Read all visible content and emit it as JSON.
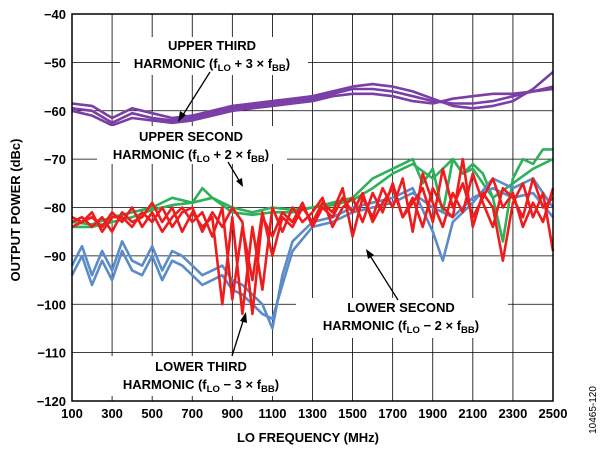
{
  "chart_data": {
    "type": "line",
    "xlabel": "LO FREQUENCY (MHz)",
    "ylabel": "OUTPUT POWER (dBc)",
    "xlim": [
      100,
      2500
    ],
    "ylim": [
      -120,
      -40
    ],
    "x_ticks": [
      "100",
      "300",
      "500",
      "700",
      "900",
      "1100",
      "1300",
      "1500",
      "1700",
      "1900",
      "2100",
      "2300",
      "2500"
    ],
    "y_ticks": [
      "−40",
      "−50",
      "−60",
      "−70",
      "−80",
      "−90",
      "−100",
      "−110",
      "−120"
    ],
    "grid": true,
    "colors": {
      "upper_third": "#7a3fa6",
      "upper_second": "#2fb05a",
      "lower_third": "#5b8cc8",
      "lower_second": "#ee1c1c"
    },
    "annotations": {
      "upper_third": {
        "line1": "UPPER THIRD",
        "line2_pre": "HARMONIC (f",
        "sub1": "LO",
        "mid": " + 3 × f",
        "sub2": "BB",
        "post": ")"
      },
      "upper_second": {
        "line1": "UPPER SECOND",
        "line2_pre": "HARMONIC (f",
        "sub1": "LO",
        "mid": " + 2 × f",
        "sub2": "BB",
        "post": ")"
      },
      "lower_second": {
        "line1": "LOWER SECOND",
        "line2_pre": "HARMONIC (f",
        "sub1": "LO",
        "mid": " − 2 × f",
        "sub2": "BB",
        "post": ")"
      },
      "lower_third": {
        "line1": "LOWER THIRD",
        "line2_pre": "HARMONIC (f",
        "sub1": "LO",
        "mid": " − 3 × f",
        "sub2": "BB",
        "post": ")"
      }
    },
    "figure_id": "10465-120",
    "series": [
      {
        "key": "upper_third",
        "traces": [
          {
            "x": [
              100,
              200,
              300,
              400,
              500,
              600,
              700,
              800,
              900,
              1000,
              1100,
              1200,
              1300,
              1400,
              1500,
              1600,
              1700,
              1800,
              1900,
              2000,
              2100,
              2200,
              2300,
              2400,
              2500
            ],
            "y": [
              -58.5,
              -59,
              -61.5,
              -59.5,
              -60.5,
              -61.5,
              -61,
              -60,
              -59,
              -58.5,
              -58,
              -57.5,
              -57,
              -56,
              -55,
              -54.5,
              -55,
              -56,
              -57.5,
              -59,
              -59.5,
              -59,
              -58,
              -55.5,
              -52
            ]
          },
          {
            "x": [
              100,
              200,
              300,
              400,
              500,
              600,
              700,
              800,
              900,
              1000,
              1100,
              1200,
              1300,
              1400,
              1500,
              1600,
              1700,
              1800,
              1900,
              2000,
              2100,
              2200,
              2300,
              2400,
              2500
            ],
            "y": [
              -59.5,
              -60,
              -62.5,
              -60.5,
              -61.5,
              -62,
              -61.5,
              -60.5,
              -59.5,
              -59,
              -58.5,
              -58,
              -57.5,
              -56.5,
              -55.5,
              -55.5,
              -56,
              -57,
              -58,
              -58.5,
              -58.5,
              -58,
              -57,
              -56,
              -55
            ]
          },
          {
            "x": [
              100,
              200,
              300,
              400,
              500,
              600,
              700,
              800,
              900,
              1000,
              1100,
              1200,
              1300,
              1400,
              1500,
              1600,
              1700,
              1800,
              1900,
              2000,
              2100,
              2200,
              2300,
              2400,
              2500
            ],
            "y": [
              -60,
              -61,
              -63,
              -61.5,
              -62,
              -62.5,
              -62,
              -61,
              -60,
              -59.5,
              -59,
              -58.5,
              -58,
              -57,
              -56.5,
              -56.5,
              -57,
              -58,
              -58.5,
              -57.5,
              -57,
              -56.5,
              -56.5,
              -56,
              -55.5
            ]
          }
        ]
      },
      {
        "key": "upper_second",
        "traces": [
          {
            "x": [
              100,
              200,
              300,
              400,
              500,
              600,
              700,
              750,
              800,
              900,
              1000,
              1100,
              1200,
              1300,
              1400,
              1500,
              1600,
              1700,
              1800,
              1850,
              1900,
              1950,
              2000,
              2050,
              2100,
              2150,
              2200,
              2250,
              2300,
              2350,
              2400,
              2450,
              2500
            ],
            "y": [
              -83,
              -83.5,
              -82,
              -81,
              -80,
              -78,
              -79,
              -76,
              -78,
              -80,
              -81,
              -80,
              -80.5,
              -80,
              -79,
              -78,
              -74,
              -72,
              -70,
              -75,
              -72,
              -81,
              -70,
              -73,
              -71,
              -73,
              -78,
              -87,
              -74,
              -70,
              -71,
              -68,
              -68
            ]
          },
          {
            "x": [
              100,
              200,
              300,
              400,
              500,
              600,
              700,
              800,
              900,
              1000,
              1100,
              1200,
              1300,
              1400,
              1500,
              1600,
              1700,
              1800,
              1900,
              2000,
              2050,
              2100,
              2200,
              2300,
              2400,
              2500
            ],
            "y": [
              -84,
              -84,
              -83,
              -82,
              -80.5,
              -79.5,
              -79,
              -78,
              -81,
              -81.5,
              -81,
              -81,
              -80,
              -79.5,
              -78.5,
              -76,
              -73,
              -71,
              -74,
              -70,
              -73,
              -72,
              -78,
              -75,
              -72,
              -70
            ]
          }
        ]
      },
      {
        "key": "lower_third",
        "traces": [
          {
            "x": [
              100,
              150,
              200,
              250,
              300,
              350,
              400,
              450,
              500,
              550,
              600,
              650,
              700,
              750,
              800,
              850,
              900,
              950,
              1000,
              1050,
              1100,
              1150,
              1200,
              1300,
              1400,
              1500,
              1600,
              1700,
              1800,
              1900,
              1950,
              2000,
              2100,
              2200,
              2300,
              2400,
              2500
            ],
            "y": [
              -92,
              -88,
              -94,
              -89,
              -93,
              -87,
              -91,
              -92,
              -88,
              -93,
              -89,
              -90,
              -92,
              -94,
              -93,
              -92,
              -95,
              -96,
              -98,
              -100,
              -105,
              -94,
              -87,
              -83,
              -82,
              -80,
              -79,
              -78,
              -76,
              -85,
              -91,
              -83,
              -79,
              -74,
              -76,
              -74,
              -80
            ]
          },
          {
            "x": [
              100,
              150,
              200,
              250,
              300,
              350,
              400,
              450,
              500,
              550,
              600,
              650,
              700,
              750,
              800,
              850,
              900,
              950,
              1000,
              1050,
              1100,
              1150,
              1200,
              1300,
              1400,
              1500,
              1600,
              1700,
              1800,
              1900,
              2000,
              2100,
              2200,
              2300,
              2400,
              2500
            ],
            "y": [
              -94,
              -90,
              -96,
              -91,
              -95,
              -89,
              -93,
              -94,
              -90,
              -95,
              -91,
              -92,
              -94,
              -96,
              -95,
              -94,
              -97,
              -98,
              -100,
              -102,
              -103,
              -96,
              -89,
              -84,
              -83,
              -81,
              -80,
              -79,
              -77,
              -80,
              -82,
              -78,
              -76,
              -78,
              -77,
              -82
            ]
          }
        ]
      },
      {
        "key": "lower_second",
        "traces": [
          {
            "x": [
              100,
              150,
              200,
              250,
              300,
              350,
              400,
              450,
              500,
              550,
              600,
              650,
              700,
              750,
              800,
              850,
              900,
              950,
              1000,
              1050,
              1100,
              1150,
              1200,
              1250,
              1300,
              1350,
              1400,
              1450,
              1500,
              1550,
              1600,
              1650,
              1700,
              1750,
              1800,
              1850,
              1900,
              1950,
              2000,
              2050,
              2100,
              2150,
              2200,
              2250,
              2300,
              2350,
              2400,
              2450,
              2500
            ],
            "y": [
              -82,
              -83,
              -82,
              -84,
              -81,
              -83,
              -80,
              -84,
              -81,
              -85,
              -82,
              -80,
              -83,
              -81,
              -86,
              -80,
              -99,
              -84,
              -95,
              -81,
              -90,
              -82,
              -84,
              -80,
              -83,
              -79,
              -81,
              -76,
              -86,
              -78,
              -82,
              -76,
              -80,
              -74,
              -85,
              -73,
              -79,
              -84,
              -77,
              -81,
              -73,
              -79,
              -84,
              -76,
              -78,
              -82,
              -74,
              -80,
              -78
            ]
          },
          {
            "x": [
              100,
              150,
              200,
              250,
              300,
              350,
              400,
              450,
              500,
              550,
              600,
              650,
              700,
              750,
              800,
              850,
              900,
              950,
              1000,
              1050,
              1100,
              1150,
              1200,
              1250,
              1300,
              1350,
              1400,
              1450,
              1500,
              1550,
              1600,
              1650,
              1700,
              1750,
              1800,
              1850,
              1900,
              1950,
              2000,
              2050,
              2100,
              2150,
              2200,
              2250,
              2300,
              2350,
              2400,
              2450,
              2500
            ],
            "y": [
              -83,
              -82,
              -84,
              -82,
              -85,
              -81,
              -83,
              -82,
              -79,
              -83,
              -80,
              -85,
              -81,
              -84,
              -82,
              -100,
              -82,
              -102,
              -84,
              -97,
              -80,
              -85,
              -80,
              -83,
              -81,
              -78,
              -84,
              -80,
              -78,
              -83,
              -77,
              -81,
              -75,
              -82,
              -79,
              -76,
              -83,
              -72,
              -80,
              -75,
              -82,
              -78,
              -74,
              -80,
              -77,
              -84,
              -79,
              -83,
              -76
            ]
          },
          {
            "x": [
              100,
              150,
              200,
              250,
              300,
              350,
              400,
              450,
              500,
              550,
              600,
              650,
              700,
              750,
              800,
              850,
              900,
              950,
              1000,
              1050,
              1100,
              1150,
              1200,
              1250,
              1300,
              1350,
              1400,
              1450,
              1500,
              1550,
              1600,
              1650,
              1700,
              1750,
              1800,
              1850,
              1900,
              1950,
              2000,
              2050,
              2100,
              2150,
              2200,
              2250,
              2300,
              2350,
              2400,
              2450,
              2500
            ],
            "y": [
              -84,
              -83,
              -81,
              -85,
              -82,
              -82,
              -84,
              -81,
              -83,
              -80,
              -84,
              -81,
              -80,
              -85,
              -81,
              -84,
              -80,
              -83,
              -102,
              -82,
              -86,
              -81,
              -83,
              -79,
              -84,
              -80,
              -82,
              -78,
              -81,
              -77,
              -83,
              -79,
              -76,
              -82,
              -78,
              -84,
              -76,
              -80,
              -82,
              -70,
              -84,
              -77,
              -80,
              -91,
              -79,
              -75,
              -82,
              -77,
              -89
            ]
          }
        ]
      }
    ]
  }
}
